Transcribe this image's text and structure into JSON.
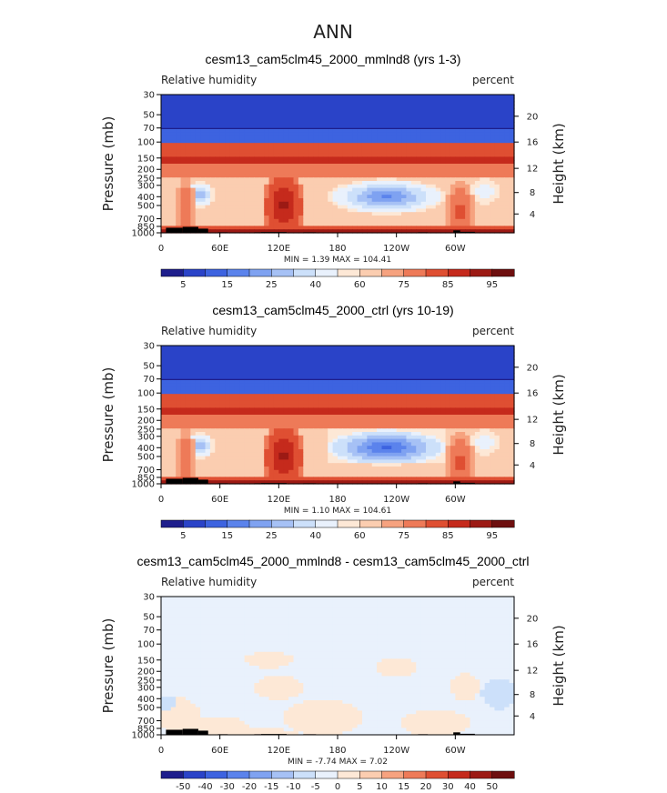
{
  "main_title": "ANN",
  "palettes": {
    "abs": [
      "#1e1e8c",
      "#2a43c8",
      "#3d63e0",
      "#5b83ec",
      "#7fa2f1",
      "#a6c1f5",
      "#cce0fa",
      "#e9f1fc",
      "#fde8d6",
      "#fbcdb0",
      "#f6a27f",
      "#ee7a58",
      "#df4f32",
      "#c52a1c",
      "#9c1a14",
      "#6e0f0f"
    ],
    "diff": [
      "#1e1e8c",
      "#2a43c8",
      "#3d63e0",
      "#5b83ec",
      "#7fa2f1",
      "#a6c1f5",
      "#cce0fa",
      "#e9f1fc",
      "#fde8d6",
      "#fbcdb0",
      "#f6a27f",
      "#ee7a58",
      "#df4f32",
      "#c52a1c",
      "#9c1a14",
      "#6e0f0f"
    ]
  },
  "chart_data": [
    {
      "type": "heatmap",
      "title": "cesm13_cam5clm45_2000_mmlnd8 (yrs 1-3)",
      "left_label": "Relative humidity",
      "right_label": "percent",
      "ylabel": "Pressure (mb)",
      "ylabel_right": "Height (km)",
      "x_ticks": [
        "0",
        "60E",
        "120E",
        "180",
        "120W",
        "60W"
      ],
      "x_tick_values": [
        0,
        60,
        120,
        180,
        240,
        300
      ],
      "xlim": [
        0,
        360
      ],
      "y_ticks": [
        "30",
        "50",
        "70",
        "100",
        "150",
        "200",
        "250",
        "300",
        "400",
        "500",
        "700",
        "850",
        "1000"
      ],
      "y_tick_values": [
        30,
        50,
        70,
        100,
        150,
        200,
        250,
        300,
        400,
        500,
        700,
        850,
        1000
      ],
      "ylim": [
        30,
        1000
      ],
      "y_scale": "log",
      "height_ticks": [
        "20",
        "16",
        "12",
        "8",
        "4"
      ],
      "height_tick_values": [
        20,
        16,
        12,
        8,
        4
      ],
      "stats": "MIN =     1.39   MAX = 104.41",
      "colorbar_labels": [
        "5",
        "15",
        "25",
        "40",
        "60",
        "75",
        "85",
        "95"
      ],
      "palette": "abs",
      "shift": 0
    },
    {
      "type": "heatmap",
      "title": "cesm13_cam5clm45_2000_ctrl (yrs 10-19)",
      "left_label": "Relative humidity",
      "right_label": "percent",
      "ylabel": "Pressure (mb)",
      "ylabel_right": "Height (km)",
      "x_ticks": [
        "0",
        "60E",
        "120E",
        "180",
        "120W",
        "60W"
      ],
      "x_tick_values": [
        0,
        60,
        120,
        180,
        240,
        300
      ],
      "xlim": [
        0,
        360
      ],
      "y_ticks": [
        "30",
        "50",
        "70",
        "100",
        "150",
        "200",
        "250",
        "300",
        "400",
        "500",
        "700",
        "850",
        "1000"
      ],
      "y_tick_values": [
        30,
        50,
        70,
        100,
        150,
        200,
        250,
        300,
        400,
        500,
        700,
        850,
        1000
      ],
      "ylim": [
        30,
        1000
      ],
      "y_scale": "log",
      "height_ticks": [
        "20",
        "16",
        "12",
        "8",
        "4"
      ],
      "height_tick_values": [
        20,
        16,
        12,
        8,
        4
      ],
      "stats": "MIN =     1.10   MAX = 104.61",
      "colorbar_labels": [
        "5",
        "15",
        "25",
        "40",
        "60",
        "75",
        "85",
        "95"
      ],
      "palette": "abs",
      "shift": -1
    },
    {
      "type": "heatmap",
      "title": "cesm13_cam5clm45_2000_mmlnd8 - cesm13_cam5clm45_2000_ctrl",
      "left_label": "Relative humidity",
      "right_label": "percent",
      "ylabel": "Pressure (mb)",
      "ylabel_right": "Height (km)",
      "x_ticks": [
        "0",
        "60E",
        "120E",
        "180",
        "120W",
        "60W"
      ],
      "x_tick_values": [
        0,
        60,
        120,
        180,
        240,
        300
      ],
      "xlim": [
        0,
        360
      ],
      "y_ticks": [
        "30",
        "50",
        "70",
        "100",
        "150",
        "200",
        "250",
        "300",
        "400",
        "500",
        "700",
        "850",
        "1000"
      ],
      "y_tick_values": [
        30,
        50,
        70,
        100,
        150,
        200,
        250,
        300,
        400,
        500,
        700,
        850,
        1000
      ],
      "ylim": [
        30,
        1000
      ],
      "y_scale": "log",
      "height_ticks": [
        "20",
        "16",
        "12",
        "8",
        "4"
      ],
      "height_tick_values": [
        20,
        16,
        12,
        8,
        4
      ],
      "stats": "MIN =    -7.74   MAX =     7.02",
      "colorbar_labels": [
        "-50",
        "-40",
        "-30",
        "-20",
        "-15",
        "-10",
        "-5",
        "0",
        "5",
        "10",
        "15",
        "20",
        "30",
        "40",
        "50"
      ],
      "palette": "diff",
      "shift": 0
    }
  ]
}
